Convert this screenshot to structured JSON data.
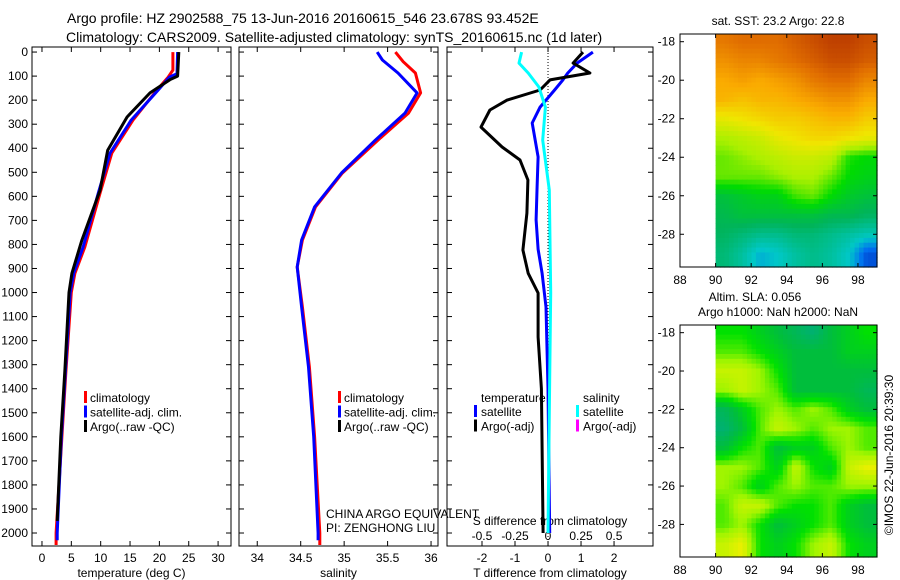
{
  "title": {
    "line1": "Argo profile: HZ 2902588_75 13-Jun-2016 20160615_546 23.678S 93.452E",
    "line2": "Climatology: CARS2009. Satellite-adjusted climatology: synTS_20160615.nc (1d later)"
  },
  "colors": {
    "climatology": "#ff0000",
    "satellite": "#0000ff",
    "argo": "#000000",
    "sal_satellite": "#00ffff",
    "sal_argo": "#ff00ff"
  },
  "credit": {
    "line1": "CHINA ARGO EQUIVALENT",
    "line2": "PI: ZENGHONG LIU"
  },
  "stamp": "©IMOS 22-Jun-2016 20:39:30",
  "chart_data": [
    {
      "type": "line",
      "name": "temperature-profile",
      "xlabel": "temperature (deg C)",
      "ylabel": "depth",
      "xlim": [
        -1.7,
        32.2
      ],
      "ylim": [
        2054,
        -21
      ],
      "xticks": [
        0,
        5,
        10,
        15,
        20,
        25,
        30
      ],
      "yticks": [
        0,
        100,
        200,
        300,
        400,
        500,
        600,
        700,
        800,
        900,
        1000,
        1100,
        1200,
        1300,
        1400,
        1500,
        1600,
        1700,
        1800,
        1900,
        2000
      ],
      "legend": [
        "climatology",
        "satellite-adj. clim.",
        "Argo(..raw -QC)"
      ],
      "legend_position": "center-left",
      "series": [
        {
          "name": "climatology",
          "color": "#ff0000",
          "points": [
            [
              0,
              22.3
            ],
            [
              75,
              22.3
            ],
            [
              104,
              21.5
            ],
            [
              158,
              19.6
            ],
            [
              283,
              15.5
            ],
            [
              420,
              11.9
            ],
            [
              586,
              9.9
            ],
            [
              811,
              7.3
            ],
            [
              920,
              5.6
            ],
            [
              1000,
              5.0
            ],
            [
              1322,
              4.1
            ],
            [
              1600,
              3.4
            ],
            [
              2000,
              2.4
            ],
            [
              2050,
              2.4
            ]
          ]
        },
        {
          "name": "satellite-adj. clim.",
          "color": "#0000ff",
          "points": [
            [
              0,
              23.1
            ],
            [
              90,
              23.0
            ],
            [
              104,
              21.7
            ],
            [
              158,
              19.8
            ],
            [
              283,
              15.2
            ],
            [
              420,
              11.6
            ],
            [
              586,
              9.6
            ],
            [
              811,
              7.0
            ],
            [
              920,
              5.4
            ],
            [
              1000,
              4.8
            ],
            [
              1322,
              4.0
            ],
            [
              1600,
              3.3
            ],
            [
              2000,
              2.6
            ],
            [
              2030,
              2.6
            ]
          ]
        },
        {
          "name": "Argo(..raw -QC)",
          "color": "#000000",
          "points": [
            [
              0,
              23.3
            ],
            [
              100,
              23.1
            ],
            [
              115,
              21.8
            ],
            [
              170,
              18.4
            ],
            [
              270,
              14.5
            ],
            [
              408,
              11.2
            ],
            [
              574,
              9.9
            ],
            [
              782,
              6.8
            ],
            [
              920,
              5.1
            ],
            [
              1000,
              4.6
            ],
            [
              1322,
              3.9
            ],
            [
              1600,
              3.2
            ],
            [
              1950,
              2.6
            ]
          ]
        }
      ]
    },
    {
      "type": "line",
      "name": "salinity-profile",
      "xlabel": "salinity",
      "xlim": [
        33.79,
        36.08
      ],
      "ylim": [
        2054,
        -21
      ],
      "xticks": [
        34,
        34.5,
        35,
        35.5,
        36
      ],
      "legend": [
        "climatology",
        "satellite-adj. clim.",
        "Argo(..raw -QC)"
      ],
      "legend_position": "center-right",
      "series": [
        {
          "name": "climatology",
          "color": "#ff0000",
          "points": [
            [
              0,
              35.59
            ],
            [
              40,
              35.68
            ],
            [
              87,
              35.82
            ],
            [
              170,
              35.88
            ],
            [
              254,
              35.74
            ],
            [
              366,
              35.39
            ],
            [
              503,
              34.98
            ],
            [
              644,
              34.67
            ],
            [
              782,
              34.52
            ],
            [
              894,
              34.46
            ],
            [
              1060,
              34.52
            ],
            [
              1310,
              34.6
            ],
            [
              1600,
              34.66
            ],
            [
              2000,
              34.72
            ],
            [
              2050,
              34.72
            ]
          ]
        },
        {
          "name": "satellite-adj. clim.",
          "color": "#0000ff",
          "points": [
            [
              0,
              35.38
            ],
            [
              33,
              35.44
            ],
            [
              87,
              35.62
            ],
            [
              170,
              35.84
            ],
            [
              254,
              35.7
            ],
            [
              366,
              35.36
            ],
            [
              503,
              34.97
            ],
            [
              644,
              34.66
            ],
            [
              782,
              34.51
            ],
            [
              894,
              34.46
            ],
            [
              1060,
              34.51
            ],
            [
              1310,
              34.59
            ],
            [
              1600,
              34.65
            ],
            [
              2000,
              34.7
            ],
            [
              2030,
              34.7
            ]
          ]
        }
      ]
    },
    {
      "type": "line",
      "name": "difference-profile",
      "xlabel": "T difference from climatology",
      "x2label": "S difference from climatology",
      "xlim": [
        -3.06,
        3.18
      ],
      "ylim": [
        2054,
        -21
      ],
      "xticks": [
        -2,
        -1,
        0,
        1,
        2
      ],
      "x2ticks": [
        -0.5,
        -0.25,
        0,
        0.25,
        0.5
      ],
      "x2_ratio": 4,
      "legend_groups": [
        {
          "title": "temperature",
          "items": [
            {
              "label": "satellite",
              "color": "#0000ff"
            },
            {
              "label": "Argo(-adj)",
              "color": "#000000"
            }
          ]
        },
        {
          "title": "salinity",
          "items": [
            {
              "label": "satellite",
              "color": "#00ffff"
            },
            {
              "label": "Argo(-adj)",
              "color": "#ff00ff"
            }
          ]
        }
      ],
      "series": [
        {
          "name": "T satellite",
          "axis": "T",
          "color": "#0000ff",
          "points": [
            [
              0,
              1.36
            ],
            [
              46,
              0.88
            ],
            [
              87,
              0.6
            ],
            [
              116,
              0.45
            ],
            [
              158,
              0.2
            ],
            [
              229,
              -0.24
            ],
            [
              295,
              -0.48
            ],
            [
              436,
              -0.3
            ],
            [
              560,
              -0.33
            ],
            [
              698,
              -0.36
            ],
            [
              820,
              -0.3
            ],
            [
              920,
              -0.18
            ],
            [
              1060,
              -0.06
            ],
            [
              1400,
              0.0
            ],
            [
              2000,
              0.05
            ]
          ]
        },
        {
          "name": "T Argo(-adj)",
          "axis": "T",
          "color": "#000000",
          "points": [
            [
              0,
              1.06
            ],
            [
              46,
              0.76
            ],
            [
              87,
              1.27
            ],
            [
              116,
              0.06
            ],
            [
              158,
              -0.24
            ],
            [
              200,
              -1.24
            ],
            [
              241,
              -1.76
            ],
            [
              312,
              -2.03
            ],
            [
              395,
              -1.39
            ],
            [
              449,
              -0.85
            ],
            [
              532,
              -0.61
            ],
            [
              670,
              -0.64
            ],
            [
              823,
              -0.76
            ],
            [
              920,
              -0.6
            ],
            [
              1002,
              -0.3
            ],
            [
              1185,
              -0.3
            ],
            [
              1400,
              -0.2
            ],
            [
              2000,
              -0.15
            ]
          ]
        },
        {
          "name": "S satellite",
          "axis": "S",
          "color": "#00ffff",
          "points": [
            [
              0,
              -0.2
            ],
            [
              46,
              -0.22
            ],
            [
              87,
              -0.15
            ],
            [
              145,
              -0.07
            ],
            [
              229,
              -0.02
            ],
            [
              366,
              -0.04
            ],
            [
              574,
              0.01
            ],
            [
              1000,
              0.02
            ],
            [
              1500,
              0.01
            ],
            [
              2000,
              0.0
            ]
          ]
        }
      ]
    },
    {
      "type": "heatmap",
      "name": "sst-map",
      "title": "sat. SST: 23.2  Argo: 22.8",
      "xlim": [
        88,
        99.07
      ],
      "ylim": [
        -29.7,
        -17.6
      ],
      "xticks": [
        88,
        90,
        92,
        94,
        96,
        98
      ],
      "yticks": [
        -18,
        -20,
        -22,
        -24,
        -26,
        -28
      ],
      "lon": [
        90.5,
        91.5,
        92.5,
        93.5,
        94.5,
        95.5,
        96.5,
        97.5,
        98.5
      ],
      "lat": [
        -18,
        -19,
        -20,
        -21,
        -22,
        -23,
        -24,
        -25,
        -26,
        -27,
        -28,
        -29
      ],
      "crange": [
        20.8,
        24.9
      ],
      "values": [
        [
          24.4,
          24.5,
          24.5,
          24.5,
          24.6,
          24.7,
          24.8,
          24.8,
          24.7
        ],
        [
          24.2,
          24.3,
          24.3,
          24.4,
          24.5,
          24.6,
          24.7,
          24.7,
          24.6
        ],
        [
          24.0,
          24.1,
          24.0,
          24.1,
          24.2,
          24.4,
          24.5,
          24.5,
          24.3
        ],
        [
          23.9,
          23.8,
          23.9,
          23.9,
          24.0,
          24.1,
          24.2,
          24.2,
          24.0
        ],
        [
          23.4,
          23.5,
          23.6,
          23.7,
          23.7,
          23.8,
          23.9,
          23.9,
          23.7
        ],
        [
          23.0,
          23.1,
          23.2,
          23.4,
          23.5,
          23.6,
          23.6,
          23.5,
          23.4
        ],
        [
          22.8,
          22.9,
          23.0,
          23.1,
          23.2,
          23.2,
          23.1,
          22.6,
          22.5
        ],
        [
          22.8,
          22.8,
          22.8,
          22.9,
          23.0,
          23.0,
          22.8,
          22.5,
          22.4
        ],
        [
          22.2,
          22.3,
          22.4,
          22.4,
          22.7,
          22.8,
          22.5,
          22.3,
          22.2
        ],
        [
          22.1,
          22.2,
          22.2,
          22.2,
          22.2,
          22.2,
          22.1,
          22.1,
          22.0
        ],
        [
          22.0,
          21.9,
          21.8,
          21.8,
          21.9,
          21.9,
          21.8,
          21.7,
          21.6
        ],
        [
          21.9,
          21.7,
          21.4,
          21.5,
          21.7,
          21.8,
          21.7,
          21.5,
          21.0
        ]
      ]
    },
    {
      "type": "heatmap",
      "name": "sla-map",
      "title": "Altim. SLA: 0.056",
      "subtitle": "Argo h1000: NaN h2000: NaN",
      "xlim": [
        88,
        99.07
      ],
      "ylim": [
        -29.7,
        -17.6
      ],
      "xticks": [
        88,
        90,
        92,
        94,
        96,
        98
      ],
      "yticks": [
        -18,
        -20,
        -22,
        -24,
        -26,
        -28
      ],
      "lon": [
        90.5,
        91.5,
        92.5,
        93.5,
        94.5,
        95.5,
        96.5,
        97.5,
        98.5
      ],
      "lat": [
        -18,
        -19,
        -20,
        -21,
        -22,
        -23,
        -24,
        -25,
        -26,
        -27,
        -28,
        -29
      ],
      "crange": [
        0,
        1
      ],
      "values": [
        [
          0.5,
          0.5,
          0.4,
          0.3,
          0.2,
          0.1,
          0.3,
          0.4,
          0.5
        ],
        [
          0.6,
          0.6,
          0.5,
          0.4,
          0.3,
          0.3,
          0.3,
          0.4,
          0.4
        ],
        [
          0.8,
          0.8,
          0.7,
          0.5,
          0.3,
          0.3,
          0.3,
          0.3,
          0.3
        ],
        [
          0.7,
          0.8,
          0.7,
          0.6,
          0.3,
          0.3,
          0.3,
          0.3,
          0.2
        ],
        [
          0.2,
          0.4,
          0.6,
          0.7,
          0.6,
          0.7,
          0.6,
          0.4,
          0.3
        ],
        [
          0.1,
          0.3,
          0.6,
          0.8,
          0.7,
          0.6,
          0.7,
          0.7,
          0.6
        ],
        [
          0.3,
          0.5,
          0.6,
          0.3,
          0.4,
          0.4,
          0.6,
          0.7,
          0.6
        ],
        [
          0.7,
          0.7,
          0.6,
          0.4,
          0.8,
          0.5,
          0.4,
          0.8,
          0.9
        ],
        [
          0.7,
          0.6,
          0.4,
          0.6,
          0.7,
          0.6,
          0.6,
          0.7,
          0.7
        ],
        [
          0.6,
          0.8,
          0.8,
          0.6,
          0.5,
          0.5,
          0.6,
          0.4,
          0.3
        ],
        [
          0.6,
          0.7,
          0.5,
          0.3,
          0.4,
          0.5,
          0.6,
          0.4,
          0.3
        ],
        [
          0.8,
          0.9,
          0.5,
          0.4,
          0.5,
          0.7,
          0.8,
          0.5,
          0.4
        ]
      ]
    }
  ]
}
